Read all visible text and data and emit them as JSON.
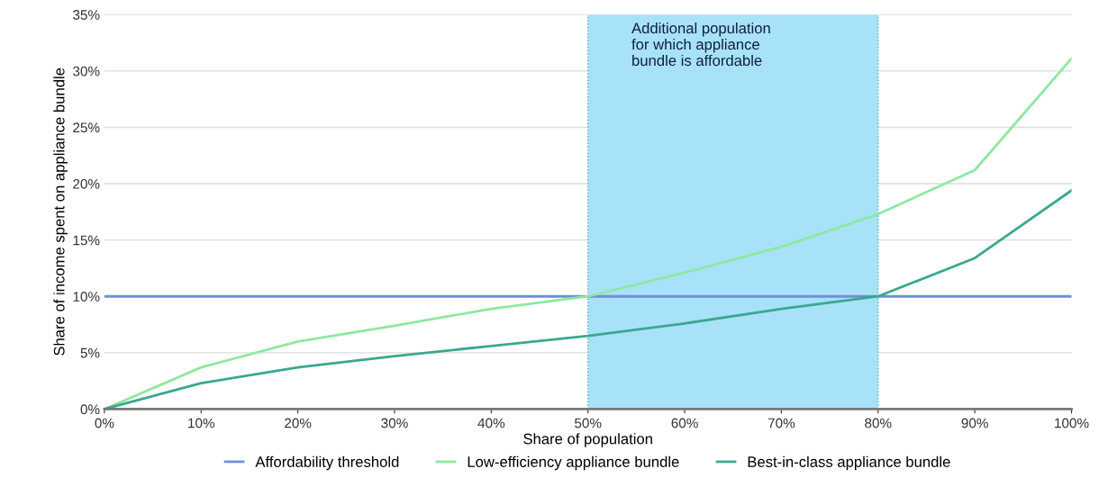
{
  "chart_data": {
    "type": "line",
    "xlabel": "Share of population",
    "ylabel": "Share of income spent on appliance bundle",
    "x": [
      0,
      10,
      20,
      30,
      40,
      50,
      60,
      70,
      80,
      90,
      100
    ],
    "series": [
      {
        "name": "Affordability threshold",
        "color": "#6f8fd8",
        "values": [
          10,
          10,
          10,
          10,
          10,
          10,
          10,
          10,
          10,
          10,
          10
        ]
      },
      {
        "name": "Low-efficiency appliance bundle",
        "color": "#8ee8a0",
        "values": [
          0,
          3.7,
          6.0,
          7.4,
          8.9,
          10.0,
          12.1,
          14.4,
          17.3,
          21.2,
          31.1
        ]
      },
      {
        "name": "Best-in-class appliance bundle",
        "color": "#3aa890",
        "values": [
          0,
          2.3,
          3.7,
          4.7,
          5.6,
          6.5,
          7.6,
          8.9,
          10.0,
          13.4,
          19.4
        ]
      }
    ],
    "bands": [
      {
        "axis": "x",
        "from": 50,
        "to": 80,
        "label": "Additional population\nfor which appliance\nbundle is affordable",
        "color": "#a8e2f8"
      }
    ],
    "ref_lines": [
      {
        "axis": "x",
        "value": 50,
        "label": null,
        "color": "#5aaab8",
        "line_style": "dotted"
      },
      {
        "axis": "x",
        "value": 80,
        "label": null,
        "color": "#5aaab8",
        "line_style": "dotted"
      }
    ],
    "xlim": [
      0,
      100
    ],
    "xticks": [
      {
        "value": 0,
        "label": "0%"
      },
      {
        "value": 10,
        "label": "10%"
      },
      {
        "value": 20,
        "label": "20%"
      },
      {
        "value": 30,
        "label": "30%"
      },
      {
        "value": 40,
        "label": "40%"
      },
      {
        "value": 50,
        "label": "50%"
      },
      {
        "value": 60,
        "label": "60%"
      },
      {
        "value": 70,
        "label": "70%"
      },
      {
        "value": 80,
        "label": "80%"
      },
      {
        "value": 90,
        "label": "90%"
      },
      {
        "value": 100,
        "label": "100%"
      }
    ],
    "ylim": [
      0,
      35
    ],
    "yticks": [
      {
        "value": 0,
        "label": "0%"
      },
      {
        "value": 5,
        "label": "5%"
      },
      {
        "value": 10,
        "label": "10%"
      },
      {
        "value": 15,
        "label": "15%"
      },
      {
        "value": 20,
        "label": "20%"
      },
      {
        "value": 25,
        "label": "25%"
      },
      {
        "value": 30,
        "label": "30%"
      },
      {
        "value": 35,
        "label": "35%"
      }
    ],
    "grid": "y",
    "legend": "bottom",
    "line_style": "solid"
  }
}
